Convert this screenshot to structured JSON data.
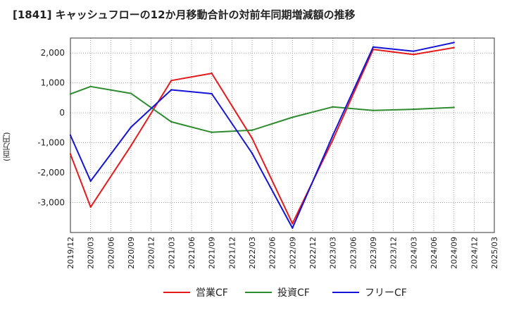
{
  "header": {
    "title": "[1841]  キャッシュフローの12か月移動合計の対前年同期増減額の推移"
  },
  "axis": {
    "ylabel": "(百万円)"
  },
  "colors": {
    "eigyo": "#e41a1c",
    "toushi": "#2e8b2e",
    "free": "#1414d6",
    "grid": "#888888"
  },
  "chart_data": {
    "type": "line",
    "title": "[1841]  キャッシュフローの12か月移動合計の対前年同期増減額の推移",
    "xlabel": "",
    "ylabel": "(百万円)",
    "ylim": [
      -4000,
      2500
    ],
    "yticks": [
      2000,
      1000,
      0,
      -1000,
      -2000,
      -3000
    ],
    "ytick_labels": [
      "2,000",
      "1,000",
      "0",
      "-1,000",
      "-2,000",
      "-3,000"
    ],
    "xticks": [
      "2019/12",
      "2020/03",
      "2020/06",
      "2020/09",
      "2020/12",
      "2021/03",
      "2021/06",
      "2021/09",
      "2021/12",
      "2022/03",
      "2022/06",
      "2022/09",
      "2022/12",
      "2023/03",
      "2023/06",
      "2023/09",
      "2023/12",
      "2024/03",
      "2024/06",
      "2024/09",
      "2024/12",
      "2025/03"
    ],
    "grid": true,
    "legend_position": "bottom",
    "series": [
      {
        "name": "営業CF",
        "color_key": "eigyo",
        "x": [
          "2019/12",
          "2020/03",
          "2020/09",
          "2021/03",
          "2021/09",
          "2022/03",
          "2022/09",
          "2023/03",
          "2023/09",
          "2024/03",
          "2024/09"
        ],
        "values": [
          -1380,
          -3150,
          -1100,
          1080,
          1320,
          -850,
          -3700,
          -900,
          2120,
          1950,
          2180
        ]
      },
      {
        "name": "投資CF",
        "color_key": "toushi",
        "x": [
          "2019/12",
          "2020/03",
          "2020/09",
          "2021/03",
          "2021/09",
          "2022/03",
          "2022/09",
          "2023/03",
          "2023/09",
          "2024/03",
          "2024/09"
        ],
        "values": [
          630,
          880,
          650,
          -300,
          -650,
          -580,
          -150,
          200,
          80,
          120,
          180
        ]
      },
      {
        "name": "フリーCF",
        "color_key": "free",
        "x": [
          "2019/12",
          "2020/03",
          "2020/09",
          "2021/03",
          "2021/09",
          "2022/03",
          "2022/09",
          "2023/03",
          "2023/09",
          "2024/03",
          "2024/09"
        ],
        "values": [
          -750,
          -2280,
          -480,
          770,
          640,
          -1350,
          -3850,
          -750,
          2200,
          2060,
          2350
        ]
      }
    ]
  }
}
